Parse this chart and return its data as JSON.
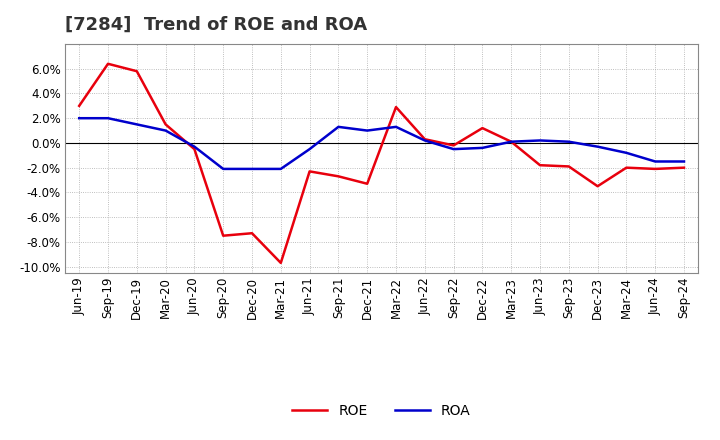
{
  "title": "[7284]  Trend of ROE and ROA",
  "x_labels": [
    "Jun-19",
    "Sep-19",
    "Dec-19",
    "Mar-20",
    "Jun-20",
    "Sep-20",
    "Dec-20",
    "Mar-21",
    "Jun-21",
    "Sep-21",
    "Dec-21",
    "Mar-22",
    "Jun-22",
    "Sep-22",
    "Dec-22",
    "Mar-23",
    "Jun-23",
    "Sep-23",
    "Dec-23",
    "Mar-24",
    "Jun-24",
    "Sep-24"
  ],
  "roe": [
    3.0,
    6.4,
    5.8,
    1.5,
    -0.5,
    -7.5,
    -7.3,
    -9.7,
    -2.3,
    -2.7,
    -3.3,
    2.9,
    0.3,
    -0.2,
    1.2,
    0.1,
    -1.8,
    -1.9,
    -3.5,
    -2.0,
    -2.1,
    -2.0
  ],
  "roa": [
    2.0,
    2.0,
    1.5,
    1.0,
    -0.3,
    -2.1,
    -2.1,
    -2.1,
    -0.5,
    1.3,
    1.0,
    1.3,
    0.2,
    -0.5,
    -0.4,
    0.1,
    0.2,
    0.1,
    -0.3,
    -0.8,
    -1.5,
    -1.5
  ],
  "roe_color": "#e8000d",
  "roa_color": "#0000cc",
  "background_color": "#ffffff",
  "plot_bg_color": "#ffffff",
  "grid_color": "#aaaaaa",
  "ylim": [
    -10.5,
    8.0
  ],
  "yticks": [
    -10.0,
    -8.0,
    -6.0,
    -4.0,
    -2.0,
    0.0,
    2.0,
    4.0,
    6.0
  ],
  "line_width": 1.8,
  "title_fontsize": 13,
  "tick_fontsize": 8.5,
  "legend_fontsize": 10
}
